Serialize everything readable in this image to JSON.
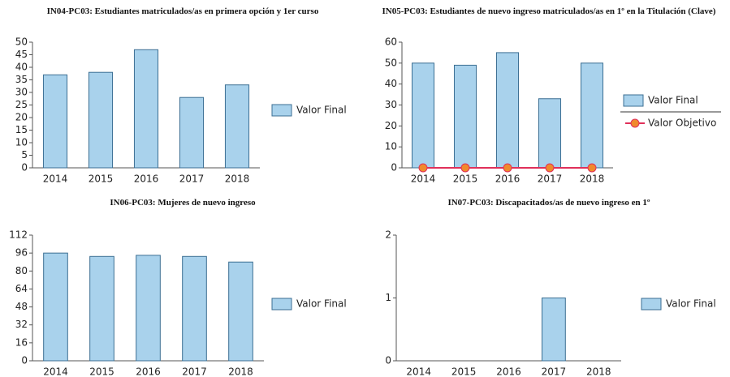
{
  "chart_data": [
    {
      "type": "bar",
      "title": "IN04-PC03: Estudiantes matriculados/as en primera opción y 1er curso",
      "categories": [
        "2014",
        "2015",
        "2016",
        "2017",
        "2018"
      ],
      "series": [
        {
          "name": "Valor Final",
          "color": "#a9d2ec",
          "values": [
            37,
            38,
            47,
            28,
            33
          ]
        }
      ],
      "ylim": [
        0,
        50
      ],
      "yticks": [
        0,
        5,
        10,
        15,
        20,
        25,
        30,
        35,
        40,
        45,
        50
      ],
      "grid": false
    },
    {
      "type": "bar",
      "title": "IN05-PC03: Estudiantes de nuevo ingreso matriculados/as en 1º en la Titulación (Clave)",
      "categories": [
        "2014",
        "2015",
        "2016",
        "2017",
        "2018"
      ],
      "series": [
        {
          "name": "Valor Final",
          "color": "#a9d2ec",
          "values": [
            50,
            49,
            55,
            33,
            50
          ]
        },
        {
          "name": "Valor Objetivo",
          "type": "line",
          "color": "#f08a2c",
          "line_color": "#e0305a",
          "values": [
            0,
            0,
            0,
            0,
            0
          ]
        }
      ],
      "ylim": [
        0,
        60
      ],
      "yticks": [
        0,
        10,
        20,
        30,
        40,
        50,
        60
      ],
      "grid": false
    },
    {
      "type": "bar",
      "title": "IN06-PC03: Mujeres de nuevo ingreso",
      "categories": [
        "2014",
        "2015",
        "2016",
        "2017",
        "2018"
      ],
      "series": [
        {
          "name": "Valor Final",
          "color": "#a9d2ec",
          "values": [
            96,
            93,
            94,
            93,
            88
          ]
        }
      ],
      "ylim": [
        0,
        112
      ],
      "yticks": [
        0,
        16,
        32,
        48,
        64,
        80,
        96,
        112
      ],
      "grid": false
    },
    {
      "type": "bar",
      "title": "IN07-PC03: Discapacitados/as de nuevo ingreso en 1º",
      "categories": [
        "2014",
        "2015",
        "2016",
        "2017",
        "2018"
      ],
      "series": [
        {
          "name": "Valor Final",
          "color": "#a9d2ec",
          "values": [
            0,
            0,
            0,
            1,
            0
          ]
        }
      ],
      "ylim": [
        0,
        2
      ],
      "yticks": [
        0,
        1,
        2
      ],
      "grid": false
    }
  ]
}
